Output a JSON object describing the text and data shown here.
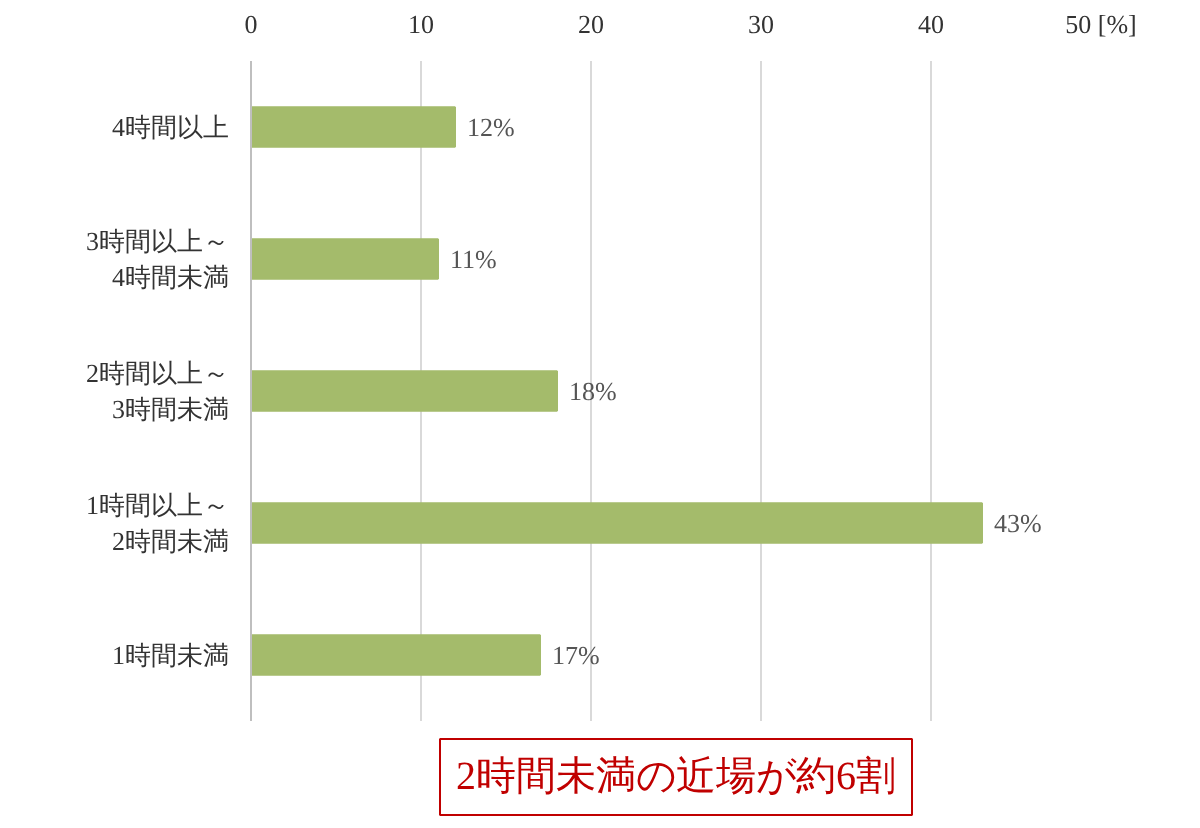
{
  "chart_data": {
    "type": "bar",
    "orientation": "horizontal",
    "categories": [
      "4時間以上",
      "3時間以上～\n4時間未満",
      "2時間以上～\n3時間未満",
      "1時間以上～\n2時間未満",
      "1時間未満"
    ],
    "values": [
      12,
      11,
      18,
      43,
      17
    ],
    "color": "#a4bb6b",
    "data_labels": true,
    "value_labels": [
      "12%",
      "11%",
      "18%",
      "43%",
      "17%"
    ],
    "xlim": [
      0,
      50
    ],
    "xticks": [
      0,
      10,
      20,
      30,
      40,
      {
        "value": 50,
        "label": "50 [%]"
      }
    ],
    "grid": "x",
    "annotations": [
      "2時間未満の近場が約6割"
    ]
  }
}
